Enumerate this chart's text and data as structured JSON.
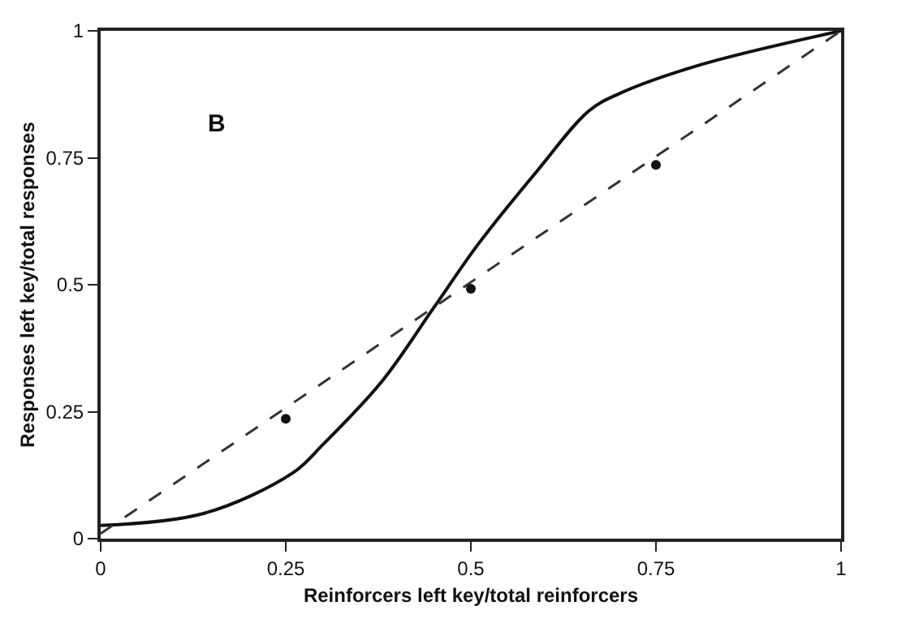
{
  "chart_data": {
    "type": "line",
    "xlabel": "Reinforcers left key/total reinforcers",
    "ylabel": "Responses left key/total responses",
    "annotations": [
      "B"
    ],
    "series": [
      {
        "color": "#111111",
        "line_style": "solid",
        "marker": "none",
        "x": [
          0,
          0.14,
          0.26,
          0.3,
          0.38,
          0.45,
          0.51,
          0.59,
          0.66,
          0.7,
          0.81,
          1
        ],
        "values": [
          0.026,
          0.05,
          0.13,
          0.185,
          0.31,
          0.455,
          0.58,
          0.725,
          0.843,
          0.876,
          0.933,
          1
        ]
      },
      {
        "type": "line",
        "color": "#333333",
        "line_style": "dashed",
        "marker": "none",
        "x": [
          0,
          1
        ],
        "values": [
          0.01,
          1
        ]
      },
      {
        "type": "scatter",
        "color": "#111111",
        "marker": "circle",
        "x": [
          0.25,
          0.5,
          0.75
        ],
        "values": [
          0.236,
          0.492,
          0.736
        ]
      }
    ],
    "xlim": [
      0,
      1
    ],
    "ylim": [
      0,
      1
    ],
    "xticks": [
      0,
      0.25,
      0.5,
      0.75,
      1
    ],
    "yticks": [
      0,
      0.25,
      0.5,
      0.75,
      1
    ]
  }
}
